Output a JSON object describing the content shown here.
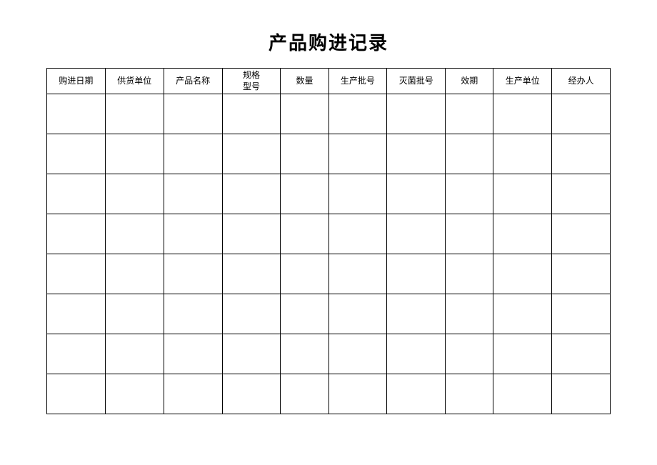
{
  "title": "产品购进记录",
  "table": {
    "columns": [
      {
        "label": "购进日期",
        "multiline": false
      },
      {
        "label": "供货单位",
        "multiline": false
      },
      {
        "label": "产品名称",
        "multiline": false
      },
      {
        "label": "规格\n型号",
        "multiline": true
      },
      {
        "label": "数量",
        "multiline": false
      },
      {
        "label": "生产批号",
        "multiline": false
      },
      {
        "label": "灭菌批号",
        "multiline": false
      },
      {
        "label": "效期",
        "multiline": false
      },
      {
        "label": "生产单位",
        "multiline": false
      },
      {
        "label": "经办人",
        "multiline": false
      }
    ],
    "row_count": 8,
    "border_color": "#000000",
    "background_color": "#ffffff",
    "header_fontsize": 12,
    "title_fontsize": 26
  }
}
